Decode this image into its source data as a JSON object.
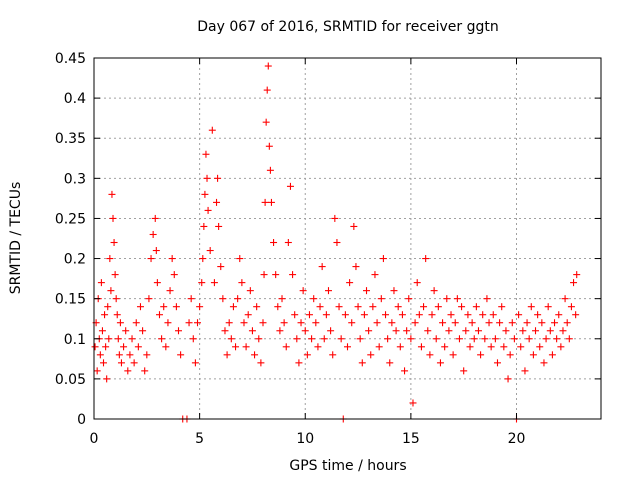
{
  "chart_data": {
    "type": "scatter",
    "title": "Day 067 of 2016, SRMTID for receiver ggtn",
    "xlabel": "GPS time / hours",
    "ylabel": "SRMTID / TECUs",
    "xlim": [
      0,
      24
    ],
    "ylim": [
      0,
      0.45
    ],
    "xticks": [
      0,
      5,
      10,
      15,
      20
    ],
    "xtick_labels": [
      "0",
      "5",
      "10",
      "15",
      "20"
    ],
    "yticks": [
      0,
      0.05,
      0.1,
      0.15,
      0.2,
      0.25,
      0.3,
      0.35,
      0.4,
      0.45
    ],
    "ytick_labels": [
      "0",
      "0.05",
      "0.1",
      "0.15",
      "0.2",
      "0.25",
      "0.3",
      "0.35",
      "0.4",
      "0.45"
    ],
    "grid": true,
    "marker": "+",
    "color": "#ff0000",
    "series": [
      {
        "name": "SRMTID",
        "points": [
          [
            0.05,
            0.09
          ],
          [
            0.1,
            0.12
          ],
          [
            0.15,
            0.06
          ],
          [
            0.2,
            0.15
          ],
          [
            0.25,
            0.1
          ],
          [
            0.3,
            0.08
          ],
          [
            0.35,
            0.17
          ],
          [
            0.4,
            0.11
          ],
          [
            0.45,
            0.07
          ],
          [
            0.5,
            0.13
          ],
          [
            0.55,
            0.09
          ],
          [
            0.6,
            0.05
          ],
          [
            0.65,
            0.14
          ],
          [
            0.7,
            0.1
          ],
          [
            0.75,
            0.2
          ],
          [
            0.8,
            0.16
          ],
          [
            0.85,
            0.28
          ],
          [
            0.9,
            0.25
          ],
          [
            0.95,
            0.22
          ],
          [
            1.0,
            0.18
          ],
          [
            1.05,
            0.15
          ],
          [
            1.1,
            0.13
          ],
          [
            1.15,
            0.1
          ],
          [
            1.2,
            0.08
          ],
          [
            1.25,
            0.12
          ],
          [
            1.3,
            0.07
          ],
          [
            1.4,
            0.09
          ],
          [
            1.5,
            0.11
          ],
          [
            1.6,
            0.06
          ],
          [
            1.7,
            0.08
          ],
          [
            1.8,
            0.1
          ],
          [
            1.9,
            0.07
          ],
          [
            2.0,
            0.12
          ],
          [
            2.1,
            0.09
          ],
          [
            2.2,
            0.14
          ],
          [
            2.3,
            0.11
          ],
          [
            2.4,
            0.06
          ],
          [
            2.5,
            0.08
          ],
          [
            2.6,
            0.15
          ],
          [
            2.7,
            0.2
          ],
          [
            2.8,
            0.23
          ],
          [
            2.9,
            0.25
          ],
          [
            2.95,
            0.21
          ],
          [
            3.0,
            0.17
          ],
          [
            3.1,
            0.13
          ],
          [
            3.2,
            0.1
          ],
          [
            3.3,
            0.14
          ],
          [
            3.4,
            0.09
          ],
          [
            3.5,
            0.12
          ],
          [
            3.6,
            0.16
          ],
          [
            3.7,
            0.2
          ],
          [
            3.8,
            0.18
          ],
          [
            3.9,
            0.14
          ],
          [
            4.0,
            0.11
          ],
          [
            4.1,
            0.08
          ],
          [
            4.2,
            0.0
          ],
          [
            4.4,
            0.0
          ],
          [
            4.5,
            0.12
          ],
          [
            4.6,
            0.15
          ],
          [
            4.7,
            0.1
          ],
          [
            4.8,
            0.07
          ],
          [
            4.9,
            0.12
          ],
          [
            5.0,
            0.14
          ],
          [
            5.1,
            0.17
          ],
          [
            5.15,
            0.2
          ],
          [
            5.2,
            0.24
          ],
          [
            5.25,
            0.28
          ],
          [
            5.3,
            0.33
          ],
          [
            5.35,
            0.3
          ],
          [
            5.4,
            0.26
          ],
          [
            5.5,
            0.21
          ],
          [
            5.6,
            0.36
          ],
          [
            5.7,
            0.17
          ],
          [
            5.8,
            0.27
          ],
          [
            5.85,
            0.3
          ],
          [
            5.9,
            0.24
          ],
          [
            6.0,
            0.19
          ],
          [
            6.1,
            0.15
          ],
          [
            6.2,
            0.11
          ],
          [
            6.3,
            0.08
          ],
          [
            6.4,
            0.12
          ],
          [
            6.5,
            0.1
          ],
          [
            6.6,
            0.14
          ],
          [
            6.7,
            0.09
          ],
          [
            6.8,
            0.15
          ],
          [
            6.9,
            0.2
          ],
          [
            7.0,
            0.17
          ],
          [
            7.1,
            0.12
          ],
          [
            7.2,
            0.09
          ],
          [
            7.3,
            0.13
          ],
          [
            7.4,
            0.16
          ],
          [
            7.5,
            0.11
          ],
          [
            7.6,
            0.08
          ],
          [
            7.7,
            0.14
          ],
          [
            7.8,
            0.1
          ],
          [
            7.9,
            0.07
          ],
          [
            8.0,
            0.12
          ],
          [
            8.05,
            0.18
          ],
          [
            8.1,
            0.27
          ],
          [
            8.15,
            0.37
          ],
          [
            8.2,
            0.41
          ],
          [
            8.25,
            0.44
          ],
          [
            8.3,
            0.34
          ],
          [
            8.35,
            0.31
          ],
          [
            8.4,
            0.27
          ],
          [
            8.5,
            0.22
          ],
          [
            8.6,
            0.18
          ],
          [
            8.7,
            0.14
          ],
          [
            8.8,
            0.11
          ],
          [
            8.9,
            0.15
          ],
          [
            9.0,
            0.12
          ],
          [
            9.1,
            0.09
          ],
          [
            9.2,
            0.22
          ],
          [
            9.3,
            0.29
          ],
          [
            9.4,
            0.18
          ],
          [
            9.5,
            0.13
          ],
          [
            9.6,
            0.1
          ],
          [
            9.7,
            0.07
          ],
          [
            9.8,
            0.12
          ],
          [
            9.9,
            0.16
          ],
          [
            10.0,
            0.11
          ],
          [
            10.1,
            0.08
          ],
          [
            10.2,
            0.13
          ],
          [
            10.3,
            0.1
          ],
          [
            10.4,
            0.15
          ],
          [
            10.5,
            0.12
          ],
          [
            10.6,
            0.09
          ],
          [
            10.7,
            0.14
          ],
          [
            10.8,
            0.19
          ],
          [
            10.9,
            0.1
          ],
          [
            11.0,
            0.13
          ],
          [
            11.1,
            0.16
          ],
          [
            11.2,
            0.11
          ],
          [
            11.3,
            0.08
          ],
          [
            11.4,
            0.25
          ],
          [
            11.5,
            0.22
          ],
          [
            11.6,
            0.14
          ],
          [
            11.7,
            0.1
          ],
          [
            11.8,
            0.0
          ],
          [
            11.9,
            0.13
          ],
          [
            12.0,
            0.09
          ],
          [
            12.1,
            0.17
          ],
          [
            12.2,
            0.12
          ],
          [
            12.3,
            0.24
          ],
          [
            12.4,
            0.19
          ],
          [
            12.5,
            0.14
          ],
          [
            12.6,
            0.1
          ],
          [
            12.7,
            0.07
          ],
          [
            12.8,
            0.13
          ],
          [
            12.9,
            0.16
          ],
          [
            13.0,
            0.11
          ],
          [
            13.1,
            0.08
          ],
          [
            13.2,
            0.14
          ],
          [
            13.3,
            0.18
          ],
          [
            13.4,
            0.12
          ],
          [
            13.5,
            0.09
          ],
          [
            13.6,
            0.15
          ],
          [
            13.7,
            0.2
          ],
          [
            13.8,
            0.13
          ],
          [
            13.9,
            0.1
          ],
          [
            14.0,
            0.07
          ],
          [
            14.1,
            0.12
          ],
          [
            14.2,
            0.16
          ],
          [
            14.3,
            0.11
          ],
          [
            14.4,
            0.14
          ],
          [
            14.5,
            0.09
          ],
          [
            14.6,
            0.13
          ],
          [
            14.7,
            0.06
          ],
          [
            14.8,
            0.11
          ],
          [
            14.9,
            0.15
          ],
          [
            15.0,
            0.1
          ],
          [
            15.1,
            0.02
          ],
          [
            15.2,
            0.12
          ],
          [
            15.3,
            0.17
          ],
          [
            15.4,
            0.13
          ],
          [
            15.5,
            0.09
          ],
          [
            15.6,
            0.14
          ],
          [
            15.7,
            0.2
          ],
          [
            15.8,
            0.11
          ],
          [
            15.9,
            0.08
          ],
          [
            16.0,
            0.13
          ],
          [
            16.1,
            0.16
          ],
          [
            16.2,
            0.1
          ],
          [
            16.3,
            0.14
          ],
          [
            16.4,
            0.07
          ],
          [
            16.5,
            0.12
          ],
          [
            16.6,
            0.09
          ],
          [
            16.7,
            0.15
          ],
          [
            16.8,
            0.11
          ],
          [
            16.9,
            0.13
          ],
          [
            17.0,
            0.08
          ],
          [
            17.1,
            0.12
          ],
          [
            17.2,
            0.15
          ],
          [
            17.3,
            0.1
          ],
          [
            17.4,
            0.14
          ],
          [
            17.5,
            0.06
          ],
          [
            17.6,
            0.11
          ],
          [
            17.7,
            0.13
          ],
          [
            17.8,
            0.09
          ],
          [
            17.9,
            0.12
          ],
          [
            18.0,
            0.1
          ],
          [
            18.1,
            0.14
          ],
          [
            18.2,
            0.11
          ],
          [
            18.3,
            0.08
          ],
          [
            18.4,
            0.13
          ],
          [
            18.5,
            0.1
          ],
          [
            18.6,
            0.15
          ],
          [
            18.7,
            0.12
          ],
          [
            18.8,
            0.09
          ],
          [
            18.9,
            0.13
          ],
          [
            19.0,
            0.1
          ],
          [
            19.1,
            0.07
          ],
          [
            19.2,
            0.12
          ],
          [
            19.3,
            0.14
          ],
          [
            19.4,
            0.09
          ],
          [
            19.5,
            0.11
          ],
          [
            19.6,
            0.05
          ],
          [
            19.7,
            0.08
          ],
          [
            19.8,
            0.12
          ],
          [
            19.9,
            0.1
          ],
          [
            20.0,
            0.0
          ],
          [
            20.1,
            0.13
          ],
          [
            20.2,
            0.09
          ],
          [
            20.3,
            0.11
          ],
          [
            20.4,
            0.06
          ],
          [
            20.5,
            0.12
          ],
          [
            20.6,
            0.1
          ],
          [
            20.7,
            0.14
          ],
          [
            20.8,
            0.08
          ],
          [
            20.9,
            0.11
          ],
          [
            21.0,
            0.13
          ],
          [
            21.1,
            0.09
          ],
          [
            21.2,
            0.12
          ],
          [
            21.3,
            0.07
          ],
          [
            21.4,
            0.1
          ],
          [
            21.5,
            0.14
          ],
          [
            21.6,
            0.11
          ],
          [
            21.7,
            0.08
          ],
          [
            21.8,
            0.12
          ],
          [
            21.9,
            0.1
          ],
          [
            22.0,
            0.13
          ],
          [
            22.1,
            0.09
          ],
          [
            22.2,
            0.11
          ],
          [
            22.3,
            0.15
          ],
          [
            22.4,
            0.12
          ],
          [
            22.5,
            0.1
          ],
          [
            22.6,
            0.14
          ],
          [
            22.7,
            0.17
          ],
          [
            22.8,
            0.13
          ],
          [
            22.85,
            0.18
          ]
        ]
      }
    ]
  }
}
